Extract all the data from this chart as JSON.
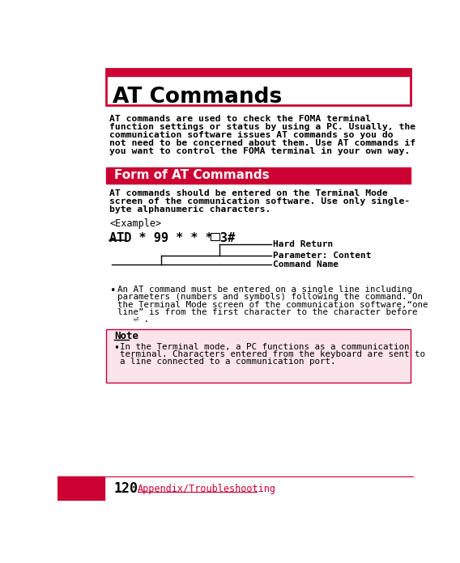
{
  "bg_color": "#ffffff",
  "red_color": "#CC0033",
  "light_pink_bg": "#fce4ec",
  "text_color": "#000000",
  "page_number": "120",
  "page_label": "Appendix/Troubleshooting",
  "main_title": "AT Commands",
  "section_title": "Form of AT Commands",
  "example_label": "<Example>",
  "label_hard_return": "Hard Return",
  "label_parameter": "Parameter: Content",
  "label_command": "Command Name",
  "note_title": "Note",
  "intro_lines": [
    "AT commands are used to check the FOMA terminal",
    "function settings or status by using a PC. Usually, the",
    "communication software issues AT commands so you do",
    "not need to be concerned about them. Use AT commands if",
    "you want to control the FOMA terminal in your own way."
  ],
  "section_lines": [
    "AT commands should be entered on the Terminal Mode",
    "screen of the communication software. Use only single-",
    "byte alphanumeric characters."
  ],
  "bullet_lines": [
    "An AT command must be entered on a single line including",
    "parameters (numbers and symbols) following the command. On",
    "the Terminal Mode screen of the communication software,“one",
    "line” is from the first character to the character before"
  ],
  "note_lines": [
    "In the Terminal mode, a PC functions as a communication",
    "terminal. Characters entered from the keyboard are sent to",
    "a line connected to a communication port."
  ]
}
